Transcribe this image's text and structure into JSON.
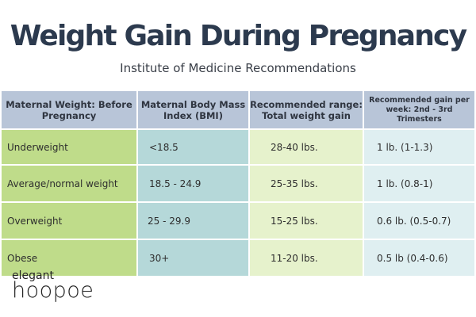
{
  "header": {
    "title": "Weight Gain During Pregnancy",
    "subtitle": "Institute of Medicine Recommendations"
  },
  "table": {
    "columns": [
      "Maternal Weight: Before Pregnancy",
      "Maternal Body Mass Index (BMI)",
      "Recommended range: Total weight gain",
      "Recommended gain per week: 2nd - 3rd Trimesters"
    ],
    "rows": [
      {
        "weight": "Underweight",
        "bmi": "<18.5",
        "total": "28-40 lbs.",
        "weekly": "1 lb. (1-1.3)"
      },
      {
        "weight": "Average/normal weight",
        "bmi": "18.5 - 24.9",
        "total": "25-35 lbs.",
        "weekly": "1 lb. (0.8-1)"
      },
      {
        "weight": "Overweight",
        "bmi": "25 - 29.9",
        "total": "15-25 lbs.",
        "weekly": "0.6 lb. (0.5-0.7)"
      },
      {
        "weight": "Obese",
        "bmi": "30+",
        "total": "11-20 lbs.",
        "weekly": "0.5 lb (0.4-0.6)"
      }
    ]
  },
  "logo": {
    "line1": "elegant",
    "line2": "hoopoe"
  },
  "colors": {
    "title": "#2c3a4e",
    "header_bg": "#b8c5d8",
    "col1_bg": "#bfdc8a",
    "col2_bg": "#b5d8d9",
    "col3_bg": "#e6f2cc",
    "col4_bg": "#dfeff1"
  }
}
